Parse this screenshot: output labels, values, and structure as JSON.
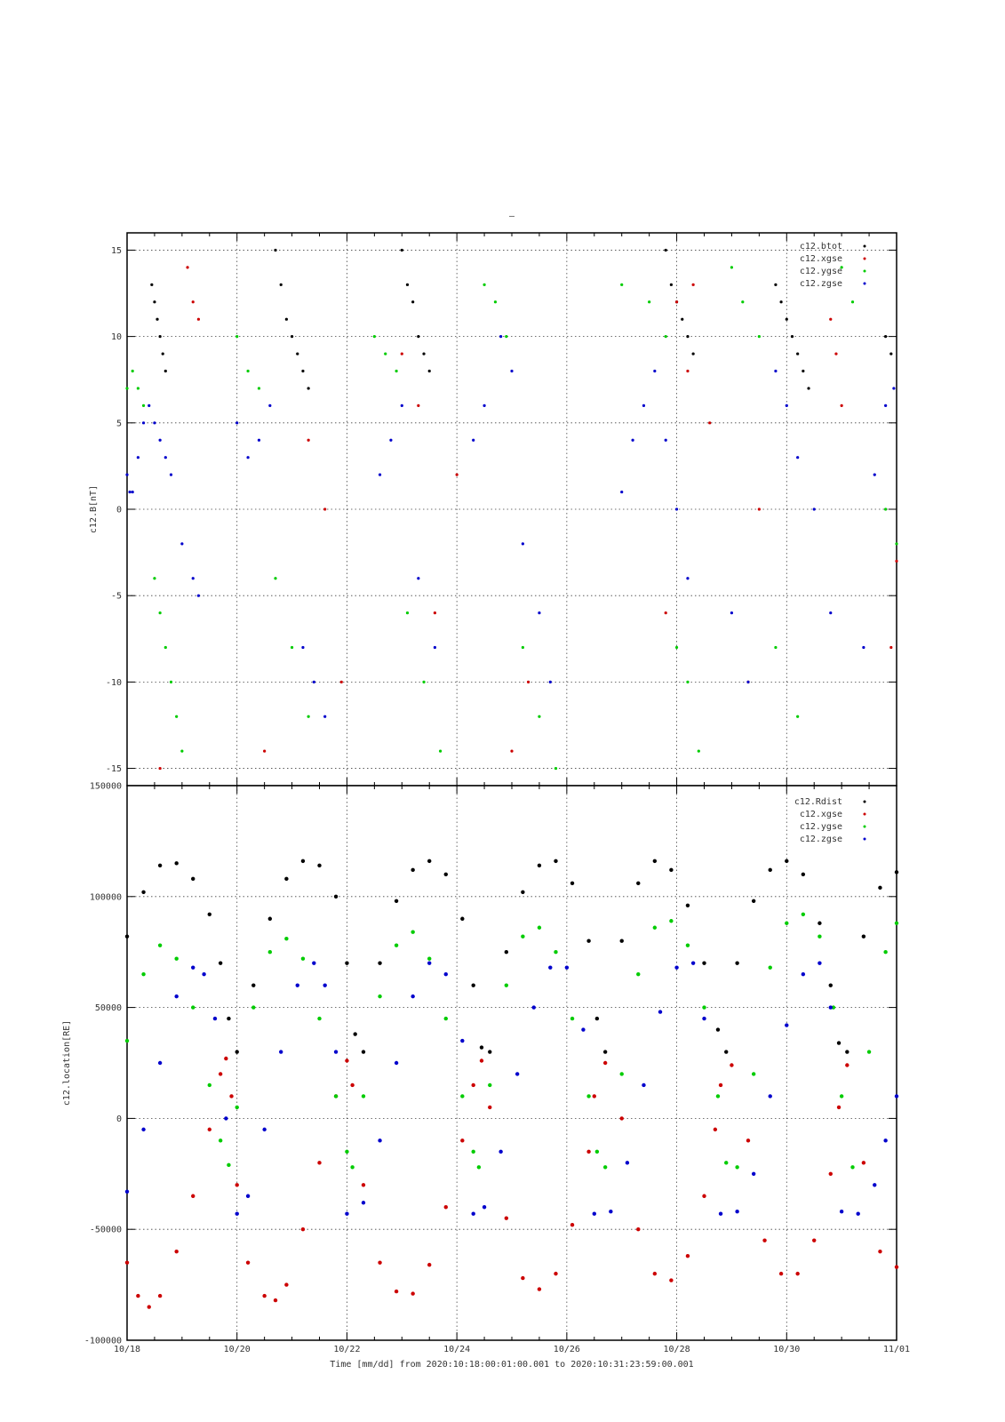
{
  "page_title": "–",
  "time_footer": "Time [mm/dd]  from 2020:10:18:00:01:00.001  to  2020:10:31:23:59:00.001",
  "x_axis": {
    "ticks": [
      "10/18",
      "10/20",
      "10/22",
      "10/24",
      "10/26",
      "10/28",
      "10/30",
      "11/01"
    ],
    "tick_days": [
      0,
      2,
      4,
      6,
      8,
      10,
      12,
      14
    ],
    "range_days": [
      0,
      14
    ]
  },
  "chart_data": [
    {
      "type": "scatter",
      "ylabel": "c12.B[nT]",
      "ylim": [
        -16,
        16
      ],
      "yticks": [
        -15,
        -10,
        -5,
        0,
        5,
        10,
        15
      ],
      "grid": true,
      "legend_position": "top-right",
      "x_unit": "days since 10/18",
      "series": [
        {
          "name": "c12.btot",
          "color": "#000000",
          "x": [
            0.45,
            0.5,
            0.55,
            0.6,
            0.65,
            0.7,
            2.7,
            2.8,
            2.9,
            3.0,
            3.1,
            3.2,
            3.3,
            5.0,
            5.1,
            5.2,
            5.3,
            5.4,
            5.5,
            9.8,
            9.9,
            10.0,
            10.1,
            10.2,
            10.3,
            11.8,
            11.9,
            12.0,
            12.1,
            12.2,
            12.3,
            12.4,
            13.8,
            13.9
          ],
          "y": [
            13,
            12,
            11,
            10,
            9,
            8,
            15,
            13,
            11,
            10,
            9,
            8,
            7,
            15,
            13,
            12,
            10,
            9,
            8,
            15,
            13,
            12,
            11,
            10,
            9,
            13,
            12,
            11,
            10,
            9,
            8,
            7,
            10,
            9
          ]
        },
        {
          "name": "c12.xgse",
          "color": "#cc0000",
          "x": [
            0.6,
            1.1,
            1.2,
            1.3,
            2.5,
            3.3,
            3.6,
            3.9,
            5.0,
            5.3,
            5.6,
            6.0,
            7.0,
            7.3,
            9.8,
            10.0,
            10.2,
            10.3,
            10.6,
            11.3,
            11.5,
            12.8,
            12.9,
            13.0,
            13.9,
            14.0
          ],
          "y": [
            -15,
            14,
            12,
            11,
            -14,
            4,
            0,
            -10,
            9,
            6,
            -6,
            2,
            -14,
            -10,
            -6,
            12,
            8,
            13,
            5,
            -10,
            0,
            11,
            9,
            6,
            -8,
            -3
          ]
        },
        {
          "name": "c12.ygse",
          "color": "#00cc00",
          "x": [
            0.0,
            0.1,
            0.2,
            0.3,
            0.5,
            0.6,
            0.7,
            0.8,
            0.9,
            1.0,
            2.0,
            2.2,
            2.4,
            2.7,
            3.0,
            3.3,
            4.5,
            4.7,
            4.9,
            5.1,
            5.4,
            5.7,
            6.5,
            6.7,
            6.9,
            7.2,
            7.5,
            7.8,
            9.0,
            9.5,
            9.8,
            10.0,
            10.2,
            10.4,
            11.0,
            11.2,
            11.5,
            11.8,
            12.2,
            13.0,
            13.2,
            13.8,
            14.0
          ],
          "y": [
            7,
            8,
            7,
            6,
            -4,
            -6,
            -8,
            -10,
            -12,
            -14,
            10,
            8,
            7,
            -4,
            -8,
            -12,
            10,
            9,
            8,
            -6,
            -10,
            -14,
            13,
            12,
            10,
            -8,
            -12,
            -15,
            13,
            12,
            10,
            -8,
            -10,
            -14,
            14,
            12,
            10,
            -8,
            -12,
            14,
            12,
            0,
            -2
          ]
        },
        {
          "name": "c12.zgse",
          "color": "#0000cc",
          "x": [
            0.0,
            0.05,
            0.1,
            0.2,
            0.3,
            0.4,
            0.5,
            0.6,
            0.7,
            0.8,
            1.0,
            1.2,
            1.3,
            2.0,
            2.2,
            2.4,
            2.6,
            3.2,
            3.4,
            3.6,
            4.6,
            4.8,
            5.0,
            5.3,
            5.6,
            6.3,
            6.5,
            6.8,
            7.0,
            7.2,
            7.5,
            7.7,
            9.0,
            9.2,
            9.4,
            9.6,
            9.8,
            10.0,
            10.2,
            11.0,
            11.3,
            11.8,
            12.0,
            12.2,
            12.5,
            12.8,
            13.4,
            13.6,
            13.8,
            13.95
          ],
          "y": [
            2,
            1,
            1,
            3,
            5,
            6,
            5,
            4,
            3,
            2,
            -2,
            -4,
            -5,
            5,
            3,
            4,
            6,
            -8,
            -10,
            -12,
            2,
            4,
            6,
            -4,
            -8,
            4,
            6,
            10,
            8,
            -2,
            -6,
            -10,
            1,
            4,
            6,
            8,
            4,
            0,
            -4,
            -6,
            -10,
            8,
            6,
            3,
            0,
            -6,
            -8,
            2,
            6,
            7
          ]
        }
      ]
    },
    {
      "type": "scatter",
      "ylabel": "c12.location[RE]",
      "ylim": [
        -100000,
        150000
      ],
      "yticks": [
        -100000,
        -50000,
        0,
        50000,
        100000,
        150000
      ],
      "grid": true,
      "legend_position": "top-right",
      "x_unit": "days since 10/18",
      "series": [
        {
          "name": "c12.Rdist",
          "color": "#000000",
          "x": [
            0.0,
            0.3,
            0.6,
            0.9,
            1.2,
            1.5,
            1.7,
            1.85,
            2.0,
            2.3,
            2.6,
            2.9,
            3.2,
            3.5,
            3.8,
            4.0,
            4.15,
            4.3,
            4.6,
            4.9,
            5.2,
            5.5,
            5.8,
            6.1,
            6.3,
            6.45,
            6.6,
            6.9,
            7.2,
            7.5,
            7.8,
            8.1,
            8.4,
            8.55,
            8.7,
            9.0,
            9.3,
            9.6,
            9.9,
            10.2,
            10.5,
            10.75,
            10.9,
            11.1,
            11.4,
            11.7,
            12.0,
            12.3,
            12.6,
            12.8,
            12.95,
            13.1,
            13.4,
            13.7,
            14.0
          ],
          "y": [
            82000,
            102000,
            114000,
            115000,
            108000,
            92000,
            70000,
            45000,
            30000,
            60000,
            90000,
            108000,
            116000,
            114000,
            100000,
            70000,
            38000,
            30000,
            70000,
            98000,
            112000,
            116000,
            110000,
            90000,
            60000,
            32000,
            30000,
            75000,
            102000,
            114000,
            116000,
            106000,
            80000,
            45000,
            30000,
            80000,
            106000,
            116000,
            112000,
            96000,
            70000,
            40000,
            30000,
            70000,
            98000,
            112000,
            116000,
            110000,
            88000,
            60000,
            34000,
            30000,
            82000,
            104000,
            111000
          ]
        },
        {
          "name": "c12.xgse",
          "color": "#cc0000",
          "x": [
            0.0,
            0.2,
            0.4,
            0.6,
            0.9,
            1.2,
            1.5,
            1.7,
            1.8,
            1.9,
            2.0,
            2.2,
            2.5,
            2.7,
            2.9,
            3.2,
            3.5,
            3.8,
            4.0,
            4.1,
            4.3,
            4.6,
            4.9,
            5.2,
            5.5,
            5.8,
            6.1,
            6.3,
            6.45,
            6.6,
            6.9,
            7.2,
            7.5,
            7.8,
            8.1,
            8.4,
            8.5,
            8.7,
            9.0,
            9.3,
            9.6,
            9.9,
            10.2,
            10.5,
            10.7,
            10.8,
            11.0,
            11.3,
            11.6,
            11.9,
            12.2,
            12.5,
            12.8,
            12.95,
            13.1,
            13.4,
            13.7,
            14.0
          ],
          "y": [
            -65000,
            -80000,
            -85000,
            -80000,
            -60000,
            -35000,
            -5000,
            20000,
            27000,
            10000,
            -30000,
            -65000,
            -80000,
            -82000,
            -75000,
            -50000,
            -20000,
            10000,
            26000,
            15000,
            -30000,
            -65000,
            -78000,
            -79000,
            -66000,
            -40000,
            -10000,
            15000,
            26000,
            5000,
            -45000,
            -72000,
            -77000,
            -70000,
            -48000,
            -15000,
            10000,
            25000,
            0,
            -50000,
            -70000,
            -73000,
            -62000,
            -35000,
            -5000,
            15000,
            24000,
            -10000,
            -55000,
            -70000,
            -70000,
            -55000,
            -25000,
            5000,
            24000,
            -20000,
            -60000,
            -67000
          ]
        },
        {
          "name": "c12.ygse",
          "color": "#00cc00",
          "x": [
            0.0,
            0.3,
            0.6,
            0.9,
            1.2,
            1.5,
            1.7,
            1.85,
            2.0,
            2.3,
            2.6,
            2.9,
            3.2,
            3.5,
            3.8,
            4.0,
            4.1,
            4.3,
            4.6,
            4.9,
            5.2,
            5.5,
            5.8,
            6.1,
            6.3,
            6.4,
            6.6,
            6.9,
            7.2,
            7.5,
            7.8,
            8.1,
            8.4,
            8.55,
            8.7,
            9.0,
            9.3,
            9.6,
            9.9,
            10.2,
            10.5,
            10.75,
            10.9,
            11.1,
            11.4,
            11.7,
            12.0,
            12.3,
            12.6,
            12.85,
            13.0,
            13.2,
            13.5,
            13.8,
            14.0
          ],
          "y": [
            35000,
            65000,
            78000,
            72000,
            50000,
            15000,
            -10000,
            -21000,
            5000,
            50000,
            75000,
            81000,
            72000,
            45000,
            10000,
            -15000,
            -22000,
            10000,
            55000,
            78000,
            84000,
            72000,
            45000,
            10000,
            -15000,
            -22000,
            15000,
            60000,
            82000,
            86000,
            75000,
            45000,
            10000,
            -15000,
            -22000,
            20000,
            65000,
            86000,
            89000,
            78000,
            50000,
            10000,
            -20000,
            -22000,
            20000,
            68000,
            88000,
            92000,
            82000,
            50000,
            10000,
            -22000,
            30000,
            75000,
            88000
          ]
        },
        {
          "name": "c12.zgse",
          "color": "#0000cc",
          "x": [
            0.0,
            0.3,
            0.6,
            0.9,
            1.2,
            1.4,
            1.6,
            1.8,
            2.0,
            2.2,
            2.5,
            2.8,
            3.1,
            3.4,
            3.6,
            3.8,
            4.0,
            4.3,
            4.6,
            4.9,
            5.2,
            5.5,
            5.8,
            6.1,
            6.3,
            6.5,
            6.8,
            7.1,
            7.4,
            7.7,
            8.0,
            8.3,
            8.5,
            8.8,
            9.1,
            9.4,
            9.7,
            10.0,
            10.3,
            10.5,
            10.8,
            11.1,
            11.4,
            11.7,
            12.0,
            12.3,
            12.6,
            12.8,
            13.0,
            13.3,
            13.6,
            13.8,
            14.0
          ],
          "y": [
            -33000,
            -5000,
            25000,
            55000,
            68000,
            65000,
            45000,
            0,
            -43000,
            -35000,
            -5000,
            30000,
            60000,
            70000,
            60000,
            30000,
            -43000,
            -38000,
            -10000,
            25000,
            55000,
            70000,
            65000,
            35000,
            -43000,
            -40000,
            -15000,
            20000,
            50000,
            68000,
            68000,
            40000,
            -43000,
            -42000,
            -20000,
            15000,
            48000,
            68000,
            70000,
            45000,
            -43000,
            -42000,
            -25000,
            10000,
            42000,
            65000,
            70000,
            50000,
            -42000,
            -43000,
            -30000,
            -10000,
            10000
          ]
        }
      ]
    }
  ]
}
